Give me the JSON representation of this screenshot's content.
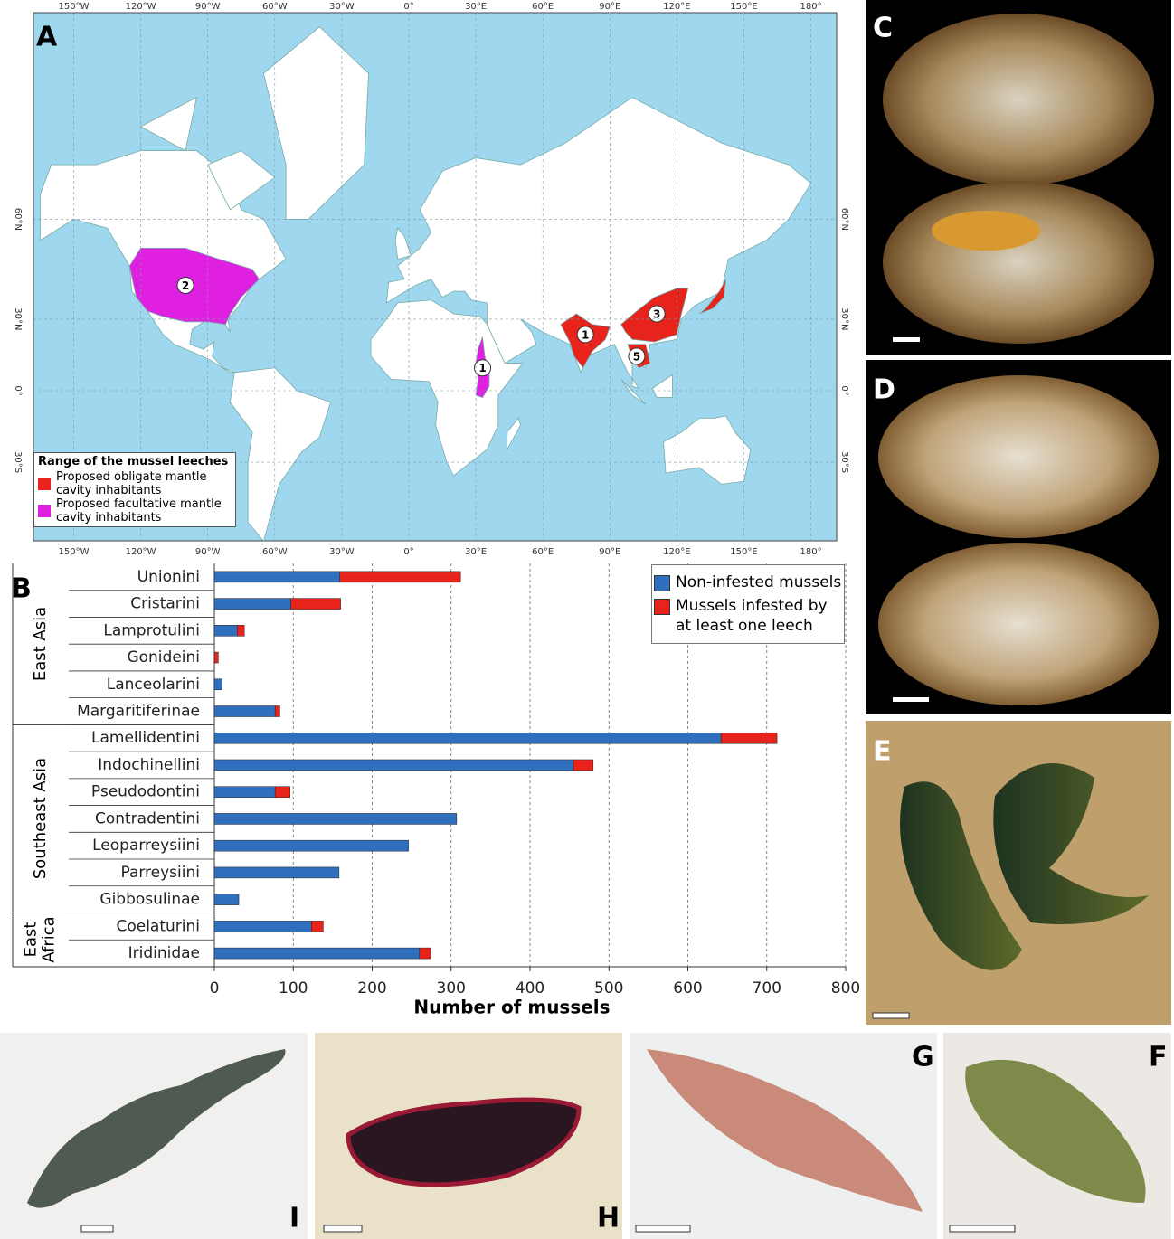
{
  "panel_labels": [
    "A",
    "B",
    "C",
    "D",
    "E",
    "F",
    "G",
    "H",
    "I"
  ],
  "map": {
    "lon_labels": [
      "150°W",
      "120°W",
      "90°W",
      "60°W",
      "30°W",
      "0°",
      "30°E",
      "60°E",
      "90°E",
      "120°E",
      "150°E",
      "180°"
    ],
    "lat_labels": [
      "60°N",
      "30°N",
      "0°",
      "30°S"
    ],
    "region_labels": [
      "2",
      "1",
      "1",
      "3",
      "5"
    ],
    "legend": {
      "title": "Range of the mussel leeches",
      "items": [
        {
          "label": "Proposed obligate mantle cavity inhabitants",
          "color": "#e8231c"
        },
        {
          "label": "Proposed facultative mantle cavity inhabitants",
          "color": "#e020e0"
        }
      ]
    }
  },
  "chart_data": {
    "type": "bar",
    "orientation": "horizontal",
    "stacked": true,
    "groups": [
      "East Asia",
      "Southeast Asia",
      "East Africa"
    ],
    "categories": [
      "Unionini",
      "Cristarini",
      "Lamprotulini",
      "Gonideini",
      "Lanceolarini",
      "Margaritiferinae",
      "Lamellidentini",
      "Indochinellini",
      "Pseudodontini",
      "Contradentini",
      "Leoparreysiini",
      "Parreysiini",
      "Gibbosulinae",
      "Coelaturini",
      "Iridinidae"
    ],
    "series": [
      {
        "name": "Non-infested mussels",
        "color": "#2f6fbd",
        "values": [
          159,
          97,
          29,
          0,
          10,
          77,
          642,
          455,
          77,
          307,
          246,
          158,
          31,
          123,
          260
        ]
      },
      {
        "name": "Mussels infested by at least one leech",
        "color": "#e8231c",
        "values": [
          153,
          63,
          9,
          5,
          0,
          6,
          71,
          25,
          19,
          0,
          0,
          0,
          0,
          15,
          14
        ]
      }
    ],
    "xlim": [
      0,
      800
    ],
    "xticks": [
      0,
      100,
      200,
      300,
      400,
      500,
      600,
      700,
      800
    ],
    "xlabel": "Number of mussels",
    "grid": true,
    "legend": "upper right"
  }
}
